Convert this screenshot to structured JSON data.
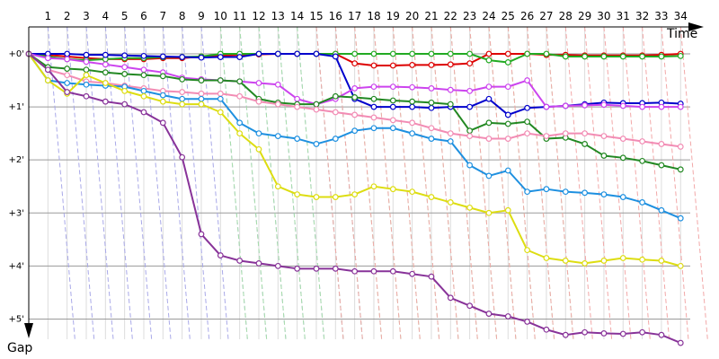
{
  "chart_data": {
    "type": "line",
    "title": "",
    "xlabel": "Time",
    "ylabel": "Gap",
    "lap_labels": [
      "1",
      "2",
      "3",
      "4",
      "5",
      "6",
      "7",
      "8",
      "9",
      "10",
      "11",
      "12",
      "13",
      "14",
      "15",
      "16",
      "17",
      "18",
      "19",
      "20",
      "21",
      "22",
      "23",
      "24",
      "25",
      "26",
      "27",
      "28",
      "29",
      "30",
      "31",
      "32",
      "33",
      "34"
    ],
    "gap_labels": [
      "+0'",
      "+1'",
      "+2'",
      "+3'",
      "+4'",
      "+5'"
    ],
    "xlim": [
      0,
      35.3
    ],
    "ylim": [
      0,
      5.5
    ],
    "series": [
      {
        "color": "#dd0000",
        "values": [
          0,
          0.02,
          0.05,
          0.08,
          0.1,
          0.1,
          0.1,
          0.08,
          0.08,
          0.05,
          0.03,
          0.02,
          0.01,
          0.0,
          0.0,
          0.0,
          0.0,
          0.18,
          0.22,
          0.22,
          0.21,
          0.21,
          0.2,
          0.18,
          0.0,
          0.0,
          0.0,
          0.02,
          0.02,
          0.03,
          0.03,
          0.03,
          0.03,
          0.02,
          0.0
        ]
      },
      {
        "color": "#22aa22",
        "values": [
          0,
          0.05,
          0.1,
          0.12,
          0.1,
          0.08,
          0.08,
          0.06,
          0.06,
          0.05,
          0.0,
          0.0,
          0.0,
          0.0,
          0.0,
          0.0,
          0.0,
          0.0,
          0.0,
          0.0,
          0.0,
          0.0,
          0.0,
          0.0,
          0.12,
          0.16,
          0.0,
          0.0,
          0.05,
          0.05,
          0.05,
          0.05,
          0.05,
          0.05,
          0.04
        ]
      },
      {
        "color": "#0000cc",
        "values": [
          0,
          0.0,
          0.0,
          0.02,
          0.02,
          0.03,
          0.04,
          0.05,
          0.06,
          0.07,
          0.06,
          0.06,
          0.0,
          0.0,
          0.0,
          0.0,
          0.05,
          0.85,
          1.0,
          1.0,
          1.0,
          1.02,
          1.0,
          1.0,
          0.85,
          1.15,
          1.02,
          1.0,
          0.98,
          0.95,
          0.92,
          0.93,
          0.93,
          0.92,
          0.94
        ]
      },
      {
        "color": "#cc44ee",
        "values": [
          0,
          0.08,
          0.1,
          0.15,
          0.2,
          0.25,
          0.3,
          0.35,
          0.45,
          0.48,
          0.5,
          0.52,
          0.55,
          0.58,
          0.85,
          0.95,
          0.85,
          0.65,
          0.62,
          0.62,
          0.63,
          0.65,
          0.68,
          0.7,
          0.62,
          0.62,
          0.5,
          1.0,
          0.98,
          0.97,
          0.96,
          0.98,
          1.0,
          1.0,
          1.0
        ]
      },
      {
        "color": "#228822",
        "values": [
          0,
          0.25,
          0.28,
          0.3,
          0.35,
          0.38,
          0.4,
          0.42,
          0.48,
          0.5,
          0.5,
          0.52,
          0.85,
          0.92,
          0.95,
          0.95,
          0.8,
          0.82,
          0.85,
          0.88,
          0.9,
          0.92,
          0.95,
          1.45,
          1.3,
          1.32,
          1.28,
          1.6,
          1.58,
          1.7,
          1.92,
          1.96,
          2.02,
          2.1,
          2.18
        ]
      },
      {
        "color": "#f28cb4",
        "values": [
          0,
          0.3,
          0.4,
          0.52,
          0.55,
          0.6,
          0.65,
          0.7,
          0.72,
          0.75,
          0.75,
          0.8,
          0.9,
          0.95,
          1.0,
          1.05,
          1.1,
          1.15,
          1.2,
          1.25,
          1.3,
          1.4,
          1.5,
          1.55,
          1.6,
          1.6,
          1.5,
          1.55,
          1.5,
          1.5,
          1.55,
          1.6,
          1.65,
          1.7,
          1.75
        ]
      },
      {
        "color": "#1e90e0",
        "values": [
          0,
          0.5,
          0.55,
          0.58,
          0.6,
          0.62,
          0.7,
          0.78,
          0.85,
          0.85,
          0.85,
          1.3,
          1.5,
          1.55,
          1.6,
          1.7,
          1.6,
          1.45,
          1.4,
          1.4,
          1.5,
          1.6,
          1.65,
          2.1,
          2.3,
          2.2,
          2.6,
          2.55,
          2.6,
          2.62,
          2.65,
          2.7,
          2.8,
          2.95,
          3.1
        ]
      },
      {
        "color": "#dddd11",
        "values": [
          0,
          0.5,
          0.75,
          0.4,
          0.55,
          0.7,
          0.8,
          0.9,
          0.95,
          0.95,
          1.1,
          1.5,
          1.8,
          2.5,
          2.65,
          2.7,
          2.7,
          2.65,
          2.5,
          2.55,
          2.6,
          2.7,
          2.8,
          2.9,
          3.0,
          2.95,
          3.7,
          3.85,
          3.9,
          3.95,
          3.9,
          3.85,
          3.88,
          3.9,
          4.0
        ]
      },
      {
        "color": "#883399",
        "values": [
          0,
          0.3,
          0.72,
          0.8,
          0.9,
          0.95,
          1.1,
          1.3,
          1.95,
          3.4,
          3.8,
          3.9,
          3.95,
          4.0,
          4.05,
          4.05,
          4.05,
          4.1,
          4.1,
          4.1,
          4.15,
          4.2,
          4.6,
          4.75,
          4.9,
          4.95,
          5.05,
          5.2,
          5.3,
          5.25,
          5.27,
          5.28,
          5.25,
          5.3,
          5.45
        ]
      }
    ],
    "lapped_lines": [
      {
        "color": "#a9a9e8",
        "laps": [
          1,
          2,
          3,
          4,
          5,
          6,
          7,
          8,
          9,
          10,
          11,
          12,
          13,
          14,
          15,
          16
        ]
      },
      {
        "color": "#a8e0a8",
        "laps": [
          10,
          11,
          12,
          13,
          14,
          15,
          16,
          17,
          18,
          19,
          20,
          21,
          22,
          23,
          24,
          25,
          26,
          27
        ]
      },
      {
        "color": "#f2a8a8",
        "laps": [
          15,
          16,
          17,
          18,
          19,
          20,
          21,
          22,
          23,
          24,
          25,
          26,
          27,
          28,
          29,
          30,
          31,
          32,
          33,
          34
        ]
      }
    ],
    "grid": true
  }
}
